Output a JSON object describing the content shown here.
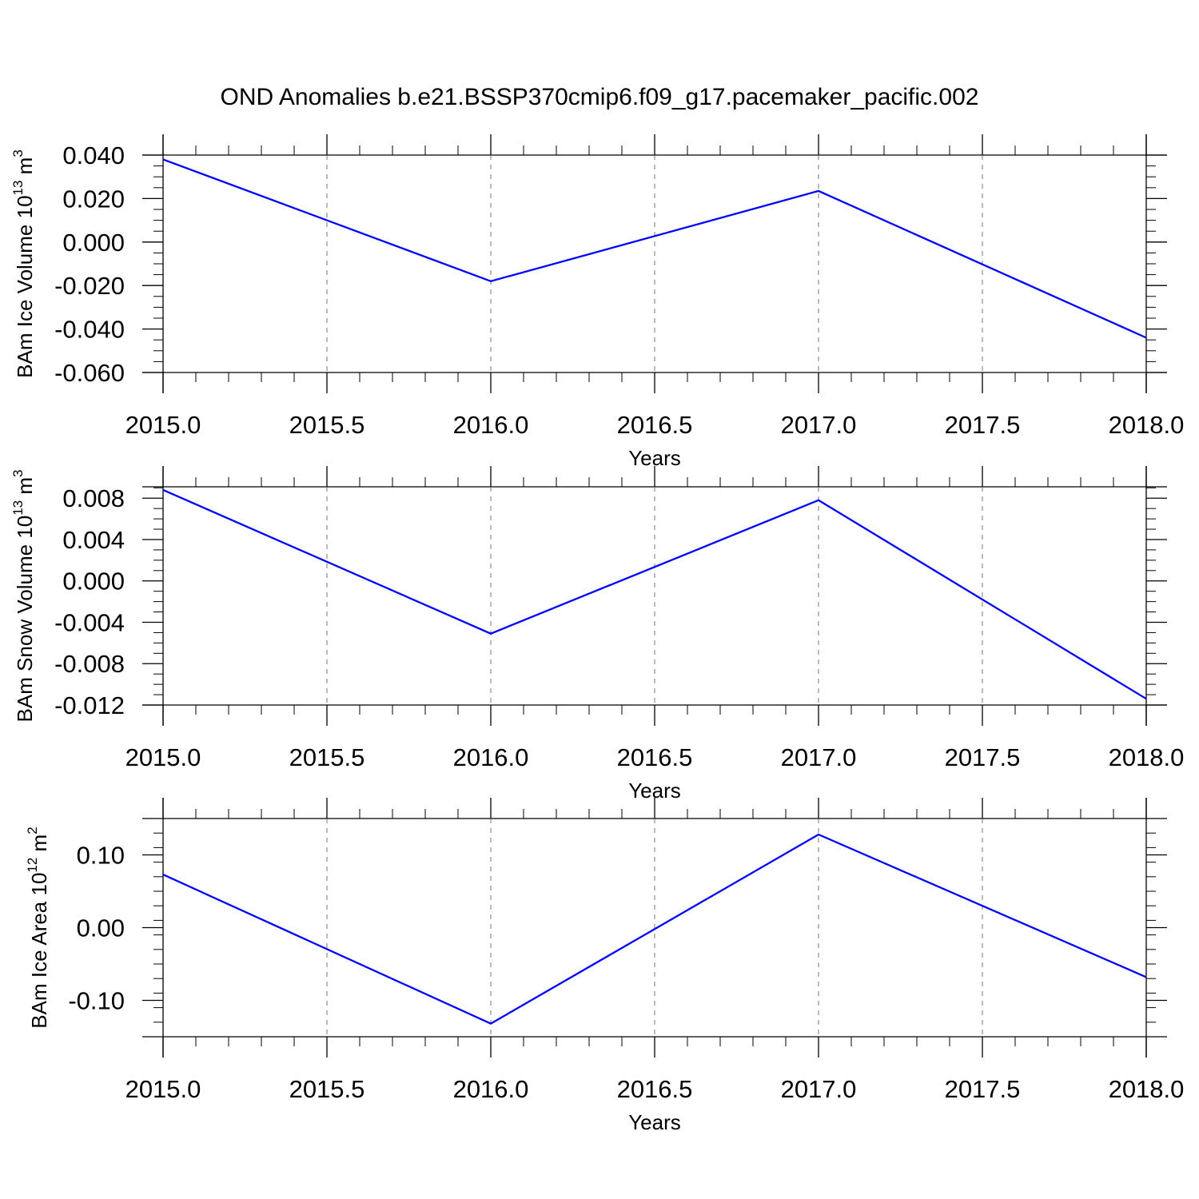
{
  "figure": {
    "title": "OND Anomalies b.e21.BSSP370cmip6.f09_g17.pacemaker_pacific.002"
  },
  "chart_data": [
    {
      "type": "line",
      "xlabel": "Years",
      "ylabel": {
        "main": "BAm Ice Volume 10",
        "exponent": "13",
        "unit": " m",
        "unit_exponent": "3"
      },
      "x": [
        2015.0,
        2016.0,
        2017.0,
        2018.0
      ],
      "series": [
        {
          "values": [
            0.038,
            -0.018,
            0.0235,
            -0.044
          ],
          "color": "#0000ff"
        }
      ],
      "xlim": [
        2015.0,
        2018.0
      ],
      "ylim": [
        -0.06,
        0.04
      ],
      "x_ticks": [
        2015.0,
        2015.5,
        2016.0,
        2016.5,
        2017.0,
        2017.5,
        2018.0
      ],
      "x_tick_labels": [
        "2015.0",
        "2015.5",
        "2016.0",
        "2016.5",
        "2017.0",
        "2017.5",
        "2018.0"
      ],
      "y_ticks": [
        -0.06,
        -0.04,
        -0.02,
        0.0,
        0.02,
        0.04
      ],
      "y_tick_labels": [
        "-0.060",
        "-0.040",
        "-0.020",
        "0.000",
        "0.020",
        "0.040"
      ],
      "y_minor_step": 0.005,
      "x_minor_step": 0.1,
      "grid": "vertical dashed at x major ticks"
    },
    {
      "type": "line",
      "xlabel": "Years",
      "ylabel": {
        "main": "BAm Snow Volume 10",
        "exponent": "13",
        "unit": " m",
        "unit_exponent": "3"
      },
      "x": [
        2015.0,
        2016.0,
        2017.0,
        2018.0
      ],
      "series": [
        {
          "values": [
            0.0088,
            -0.0051,
            0.0078,
            -0.0114
          ],
          "color": "#0000ff"
        }
      ],
      "xlim": [
        2015.0,
        2018.0
      ],
      "ylim": [
        -0.012,
        0.0091
      ],
      "x_ticks": [
        2015.0,
        2015.5,
        2016.0,
        2016.5,
        2017.0,
        2017.5,
        2018.0
      ],
      "x_tick_labels": [
        "2015.0",
        "2015.5",
        "2016.0",
        "2016.5",
        "2017.0",
        "2017.5",
        "2018.0"
      ],
      "y_ticks": [
        -0.012,
        -0.008,
        -0.004,
        0.0,
        0.004,
        0.008
      ],
      "y_tick_labels": [
        "-0.012",
        "-0.008",
        "-0.004",
        "0.000",
        "0.004",
        "0.008"
      ],
      "y_minor_step": 0.001,
      "x_minor_step": 0.1,
      "grid": "vertical dashed at x major ticks"
    },
    {
      "type": "line",
      "xlabel": "Years",
      "ylabel": {
        "main": "BAm Ice Area 10",
        "exponent": "12",
        "unit": " m",
        "unit_exponent": "2"
      },
      "x": [
        2015.0,
        2016.0,
        2017.0,
        2018.0
      ],
      "series": [
        {
          "values": [
            0.073,
            -0.132,
            0.128,
            -0.068
          ],
          "color": "#0000ff"
        }
      ],
      "xlim": [
        2015.0,
        2018.0
      ],
      "ylim": [
        -0.15,
        0.15
      ],
      "x_ticks": [
        2015.0,
        2015.5,
        2016.0,
        2016.5,
        2017.0,
        2017.5,
        2018.0
      ],
      "x_tick_labels": [
        "2015.0",
        "2015.5",
        "2016.0",
        "2016.5",
        "2017.0",
        "2017.5",
        "2018.0"
      ],
      "y_ticks": [
        -0.1,
        0.0,
        0.1
      ],
      "y_tick_labels": [
        "-0.10",
        "0.00",
        "0.10"
      ],
      "y_minor_step": 0.02,
      "x_minor_step": 0.1,
      "grid": "vertical dashed at x major ticks"
    }
  ]
}
